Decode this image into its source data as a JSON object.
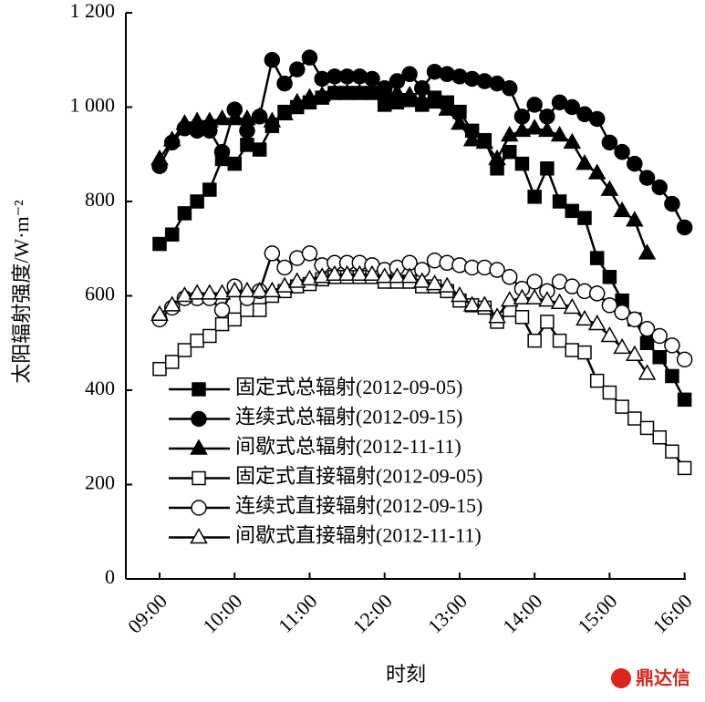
{
  "chart_data": {
    "type": "line",
    "xlabel": "时刻",
    "ylabel": "太阳辐射强度/W·m⁻²",
    "x": [
      "09:00",
      "09:10",
      "09:20",
      "09:30",
      "09:40",
      "09:50",
      "10:00",
      "10:10",
      "10:20",
      "10:30",
      "10:40",
      "10:50",
      "11:00",
      "11:10",
      "11:20",
      "11:30",
      "11:40",
      "11:50",
      "12:00",
      "12:10",
      "12:20",
      "12:30",
      "12:40",
      "12:50",
      "13:00",
      "13:10",
      "13:20",
      "13:30",
      "13:40",
      "13:50",
      "14:00",
      "14:10",
      "14:20",
      "14:30",
      "14:40",
      "14:50",
      "15:00",
      "15:10",
      "15:20",
      "15:30",
      "15:40",
      "15:50",
      "16:00"
    ],
    "xlim": [
      "08:33",
      "16:01"
    ],
    "xticks": [
      "09:00",
      "10:00",
      "11:00",
      "12:00",
      "13:00",
      "14:00",
      "15:00",
      "16:00"
    ],
    "ylim": [
      0,
      1200
    ],
    "yticks": [
      0,
      200,
      400,
      600,
      800,
      {
        "value": 1000,
        "label": "1 000"
      },
      {
        "value": 1200,
        "label": "1 200"
      }
    ],
    "legend": "lower-left",
    "series": [
      {
        "name": "固定式总辐射(2012-09-05)",
        "color": "#000000",
        "marker": "square",
        "filled": true,
        "values": [
          710,
          730,
          775,
          800,
          825,
          890,
          880,
          920,
          910,
          960,
          990,
          1000,
          1010,
          1020,
          1030,
          1030,
          1030,
          1030,
          1005,
          1010,
          1015,
          1005,
          1020,
          1010,
          990,
          950,
          930,
          870,
          905,
          880,
          810,
          870,
          800,
          780,
          765,
          680,
          640,
          590,
          550,
          500,
          470,
          430,
          380
        ]
      },
      {
        "name": "连续式总辐射(2012-09-15)",
        "color": "#000000",
        "marker": "circle",
        "filled": true,
        "values": [
          875,
          925,
          955,
          950,
          950,
          905,
          995,
          950,
          980,
          1100,
          1050,
          1080,
          1105,
          1060,
          1065,
          1065,
          1065,
          1060,
          1040,
          1055,
          1070,
          1040,
          1075,
          1070,
          1065,
          1060,
          1055,
          1050,
          1040,
          980,
          1005,
          980,
          1010,
          1000,
          985,
          975,
          925,
          905,
          880,
          850,
          830,
          795,
          745
        ]
      },
      {
        "name": "间歇式总辐射(2012-11-11)",
        "color": "#000000",
        "marker": "triangle",
        "filled": true,
        "values": [
          890,
          930,
          965,
          970,
          970,
          975,
          975,
          975,
          980,
          970,
          985,
          1010,
          1020,
          1025,
          1030,
          1030,
          1030,
          1030,
          1030,
          1030,
          1025,
          1015,
          1010,
          995,
          965,
          930,
          925,
          890,
          940,
          950,
          955,
          950,
          940,
          925,
          880,
          860,
          825,
          780,
          760,
          690,
          null,
          null,
          null
        ]
      },
      {
        "name": "固定式直接辐射(2012-09-05)",
        "color": "#000000",
        "marker": "square",
        "filled": false,
        "values": [
          445,
          460,
          485,
          505,
          515,
          540,
          550,
          570,
          570,
          600,
          610,
          620,
          625,
          635,
          640,
          640,
          640,
          640,
          630,
          630,
          630,
          620,
          620,
          610,
          590,
          580,
          575,
          545,
          570,
          555,
          505,
          545,
          505,
          485,
          480,
          420,
          395,
          365,
          340,
          320,
          300,
          270,
          235
        ]
      },
      {
        "name": "连续式直接辐射(2012-09-15)",
        "color": "#000000",
        "marker": "circle",
        "filled": false,
        "values": [
          550,
          575,
          595,
          595,
          595,
          570,
          620,
          595,
          610,
          690,
          660,
          680,
          690,
          665,
          670,
          670,
          670,
          665,
          655,
          660,
          670,
          655,
          675,
          670,
          665,
          660,
          660,
          655,
          640,
          615,
          630,
          610,
          630,
          620,
          610,
          605,
          580,
          565,
          550,
          530,
          515,
          495,
          465
        ]
      },
      {
        "name": "间歇式直接辐射(2012-11-11)",
        "color": "#000000",
        "marker": "triangle",
        "filled": false,
        "values": [
          560,
          580,
          600,
          605,
          605,
          605,
          610,
          610,
          610,
          610,
          620,
          630,
          635,
          640,
          645,
          645,
          645,
          645,
          640,
          640,
          640,
          630,
          625,
          620,
          600,
          580,
          580,
          555,
          590,
          595,
          595,
          590,
          585,
          575,
          550,
          540,
          515,
          490,
          475,
          435,
          null,
          null,
          null
        ]
      }
    ]
  },
  "watermark": "鼎达信"
}
